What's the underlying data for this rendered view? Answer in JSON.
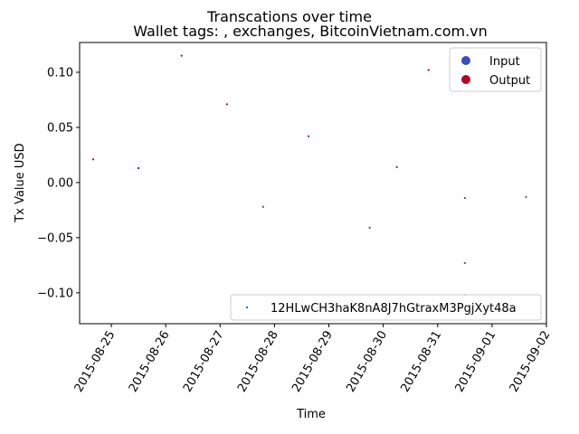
{
  "chart_data": {
    "type": "scatter",
    "title": "Transcations over time",
    "subtitle": "Wallet tags: , exchanges, BitcoinVietnam.com.vn",
    "xlabel": "Time",
    "ylabel": "Tx Value USD",
    "x_ticks": [
      "2015-08-25",
      "2015-08-26",
      "2015-08-27",
      "2015-08-28",
      "2015-08-29",
      "2015-08-30",
      "2015-08-31",
      "2015-09-01",
      "2015-09-02"
    ],
    "y_ticks": [
      "0.10",
      "0.05",
      "0.00",
      "−0.05",
      "−0.10"
    ],
    "y_tick_values": [
      0.1,
      0.05,
      0.0,
      -0.05,
      -0.1
    ],
    "xlim": [
      "2015-08-24 10:00",
      "2015-09-02 00:00"
    ],
    "ylim": [
      -0.128,
      0.127
    ],
    "legend_kind": {
      "placement": "upper right",
      "entries": [
        {
          "label": "Input",
          "color": "#3b4cc0"
        },
        {
          "label": "Output",
          "color": "#b40426"
        }
      ]
    },
    "legend_address": {
      "placement": "lower right",
      "entries": [
        {
          "label": "12HLwCH3haK8nA8J7hGtraxM3PgjXyt48a",
          "color": "#1f77b4"
        }
      ]
    },
    "series": [
      {
        "kind": "Input",
        "color": "#3b4cc0",
        "points": [
          {
            "x": "2015-08-27 19:00",
            "y": -0.022
          },
          {
            "x": "2015-08-29 18:00",
            "y": -0.041
          },
          {
            "x": "2015-08-31 12:00",
            "y": -0.014
          },
          {
            "x": "2015-08-31 12:00",
            "y": -0.073
          },
          {
            "x": "2015-08-31 12:00",
            "y": -0.102
          },
          {
            "x": "2015-09-01 15:00",
            "y": -0.013
          }
        ]
      },
      {
        "kind": "Output",
        "color": "#b40426",
        "points": [
          {
            "x": "2015-08-24 16:00",
            "y": 0.021
          },
          {
            "x": "2015-08-25 12:00",
            "y": 0.013
          },
          {
            "x": "2015-08-26 07:00",
            "y": 0.115
          },
          {
            "x": "2015-08-27 03:00",
            "y": 0.071
          },
          {
            "x": "2015-08-28 15:00",
            "y": 0.042
          },
          {
            "x": "2015-08-30 06:00",
            "y": 0.014
          },
          {
            "x": "2015-08-30 20:00",
            "y": 0.102
          }
        ]
      }
    ]
  }
}
